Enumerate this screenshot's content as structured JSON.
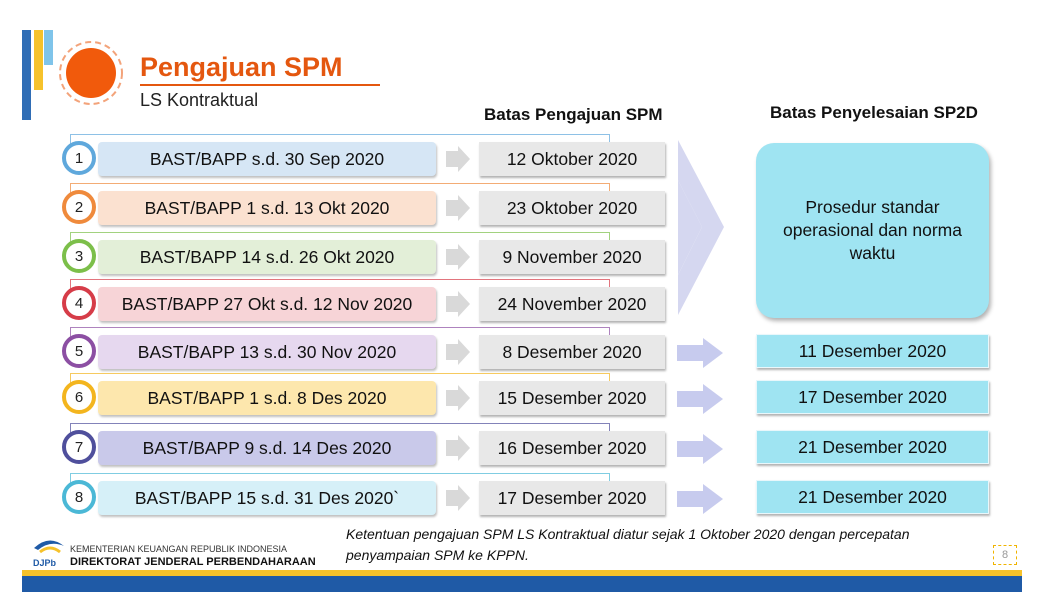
{
  "header": {
    "title": "Pengajuan SPM",
    "subtitle": "LS Kontraktual"
  },
  "columns": {
    "batas_spm": "Batas Pengajuan SPM",
    "batas_sp2d": "Batas Penyelesaian SP2D"
  },
  "rows": [
    {
      "num": "1",
      "label": "BAST/BAPP s.d. 30 Sep 2020",
      "spm": "12 Oktober 2020",
      "color": "#5fa8dc",
      "fill": "#d6e6f5"
    },
    {
      "num": "2",
      "label": "BAST/BAPP 1 s.d. 13 Okt 2020",
      "spm": "23 Oktober 2020",
      "color": "#ef8a3c",
      "fill": "#fbe1d0"
    },
    {
      "num": "3",
      "label": "BAST/BAPP 14 s.d. 26 Okt 2020",
      "spm": "9 November 2020",
      "color": "#7cbf4a",
      "fill": "#e3efd8"
    },
    {
      "num": "4",
      "label": "BAST/BAPP 27 Okt s.d. 12 Nov 2020",
      "spm": "24 November 2020",
      "color": "#d63c48",
      "fill": "#f7d4d7"
    },
    {
      "num": "5",
      "label": "BAST/BAPP 13 s.d. 30 Nov 2020",
      "spm": "8 Desember 2020",
      "sp2d": "11 Desember 2020",
      "color": "#8c4fa3",
      "fill": "#e6d8ef"
    },
    {
      "num": "6",
      "label": "BAST/BAPP 1 s.d. 8 Des 2020",
      "spm": "15 Desember 2020",
      "sp2d": "17 Desember 2020",
      "color": "#f3b51e",
      "fill": "#fde7ad"
    },
    {
      "num": "7",
      "label": "BAST/BAPP 9 s.d. 14 Des 2020",
      "spm": "16 Desember 2020",
      "sp2d": "21 Desember 2020",
      "color": "#4f4f9c",
      "fill": "#c9c9ea"
    },
    {
      "num": "8",
      "label": "BAST/BAPP 15 s.d. 31 Des 2020`",
      "spm": "17 Desember 2020",
      "sp2d": "21 Desember 2020",
      "color": "#4bb8d6",
      "fill": "#d6f0f8"
    }
  ],
  "sp2d_group": {
    "line1": "Prosedur standar",
    "line2": "operasional dan norma",
    "line3": "waktu"
  },
  "footer": {
    "note_line1": "Ketentuan pengajuan SPM LS Kontraktual diatur sejak 1 Oktober 2020 dengan percepatan",
    "note_line2": "penyampaian SPM ke KPPN.",
    "logo_text": "DJPb",
    "ministry": "KEMENTERIAN KEUANGAN REPUBLIK INDONESIA",
    "directorate": "DIREKTORAT JENDERAL PERBENDAHARAAN",
    "page_number": "8"
  }
}
